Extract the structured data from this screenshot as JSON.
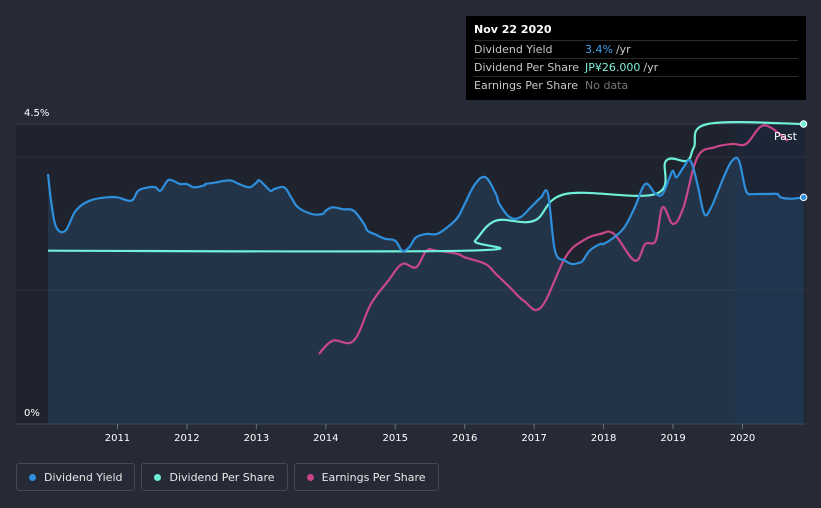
{
  "tooltip": {
    "date": "Nov 22 2020",
    "rows": [
      {
        "label": "Dividend Yield",
        "value": "3.4%",
        "unit": "/yr"
      },
      {
        "label": "Dividend Per Share",
        "value": "JP¥26.000",
        "unit": "/yr"
      },
      {
        "label": "Earnings Per Share",
        "value": "No data"
      }
    ]
  },
  "past_label": "Past",
  "legend": [
    {
      "label": "Dividend Yield",
      "color": "#2e8fdc"
    },
    {
      "label": "Dividend Per Share",
      "color": "#6ff0d8"
    },
    {
      "label": "Earnings Per Share",
      "color": "#c8468a"
    }
  ],
  "chart_data": {
    "type": "line",
    "title": "",
    "xlabel": "",
    "ylabel": "",
    "y_tick_labels": [
      "4.5%",
      "0%"
    ],
    "x_tick_labels": [
      "2011",
      "2012",
      "2013",
      "2014",
      "2015",
      "2016",
      "2017",
      "2018",
      "2019",
      "2020"
    ],
    "xlim": [
      2010.0,
      2020.9
    ],
    "ylim": [
      0,
      4.5
    ],
    "series": [
      {
        "name": "Dividend Yield",
        "unit": "%",
        "color": "#2e8fdc",
        "x": [
          2010.0,
          2010.05,
          2010.12,
          2010.25,
          2010.4,
          2010.6,
          2010.85,
          2011.0,
          2011.2,
          2011.3,
          2011.45,
          2011.55,
          2011.62,
          2011.72,
          2011.8,
          2011.9,
          2012.0,
          2012.1,
          2012.25,
          2012.27,
          2012.4,
          2012.55,
          2012.65,
          2012.75,
          2012.9,
          2013.0,
          2013.05,
          2013.2,
          2013.25,
          2013.4,
          2013.5,
          2013.6,
          2013.8,
          2013.95,
          2014.0,
          2014.1,
          2014.25,
          2014.4,
          2014.55,
          2014.6,
          2014.7,
          2014.85,
          2015.0,
          2015.1,
          2015.2,
          2015.3,
          2015.45,
          2015.6,
          2015.75,
          2015.9,
          2016.0,
          2016.15,
          2016.3,
          2016.45,
          2016.5,
          2016.65,
          2016.8,
          2016.95,
          2017.0,
          2017.1,
          2017.2,
          2017.3,
          2017.45,
          2017.55,
          2017.65,
          2017.7,
          2017.8,
          2017.95,
          2018.0,
          2018.15,
          2018.3,
          2018.45,
          2018.6,
          2018.75,
          2018.85,
          2018.95,
          2019.0,
          2019.05,
          2019.15,
          2019.25,
          2019.35,
          2019.45,
          2019.55,
          2019.65,
          2019.75,
          2019.85,
          2019.95,
          2020.05,
          2020.15,
          2020.2,
          2020.25,
          2020.35,
          2020.5,
          2020.55,
          2020.7,
          2020.88
        ],
        "values": [
          3.75,
          3.3,
          2.95,
          2.9,
          3.2,
          3.35,
          3.4,
          3.4,
          3.35,
          3.5,
          3.55,
          3.55,
          3.5,
          3.65,
          3.65,
          3.6,
          3.6,
          3.55,
          3.58,
          3.6,
          3.62,
          3.65,
          3.65,
          3.6,
          3.55,
          3.62,
          3.65,
          3.5,
          3.52,
          3.55,
          3.4,
          3.25,
          3.15,
          3.15,
          3.2,
          3.25,
          3.22,
          3.2,
          3.0,
          2.9,
          2.85,
          2.78,
          2.75,
          2.6,
          2.65,
          2.8,
          2.85,
          2.85,
          2.95,
          3.1,
          3.3,
          3.6,
          3.7,
          3.45,
          3.3,
          3.1,
          3.1,
          3.25,
          3.3,
          3.4,
          3.45,
          2.6,
          2.45,
          2.4,
          2.42,
          2.45,
          2.6,
          2.7,
          2.7,
          2.8,
          2.95,
          3.25,
          3.6,
          3.45,
          3.45,
          3.7,
          3.8,
          3.7,
          3.85,
          3.95,
          3.6,
          3.15,
          3.25,
          3.5,
          3.75,
          3.95,
          3.95,
          3.5,
          3.45,
          3.45,
          3.45,
          3.45,
          3.45,
          3.4,
          3.38,
          3.4
        ]
      },
      {
        "name": "Dividend Per Share",
        "unit": "JP¥",
        "color": "#6ff0d8",
        "x": [
          2010.0,
          2016.0,
          2016.15,
          2016.45,
          2017.0,
          2017.45,
          2018.75,
          2018.9,
          2019.2,
          2019.3,
          2019.5,
          2020.88
        ],
        "values": [
          2.6,
          2.6,
          2.75,
          3.05,
          3.05,
          3.45,
          3.45,
          3.95,
          3.95,
          4.15,
          4.5,
          4.5
        ]
      },
      {
        "name": "Earnings Per Share",
        "unit": "JP¥",
        "color": "#c8468a",
        "x": [
          2013.9,
          2014.1,
          2014.4,
          2014.65,
          2014.9,
          2015.1,
          2015.3,
          2015.45,
          2015.6,
          2015.9,
          2016.0,
          2016.3,
          2016.45,
          2016.65,
          2016.85,
          2017.1,
          2017.45,
          2017.7,
          2017.95,
          2018.15,
          2018.45,
          2018.6,
          2018.75,
          2018.85,
          2019.0,
          2019.15,
          2019.35,
          2019.6,
          2019.85,
          2020.05,
          2020.25,
          2020.4,
          2020.65
        ],
        "values": [
          1.05,
          1.25,
          1.25,
          1.8,
          2.15,
          2.4,
          2.35,
          2.6,
          2.6,
          2.55,
          2.5,
          2.4,
          2.25,
          2.05,
          1.85,
          1.75,
          2.5,
          2.75,
          2.85,
          2.85,
          2.45,
          2.7,
          2.75,
          3.25,
          3.0,
          3.25,
          4.0,
          4.15,
          4.2,
          4.2,
          4.45,
          4.45,
          4.25
        ]
      }
    ]
  }
}
